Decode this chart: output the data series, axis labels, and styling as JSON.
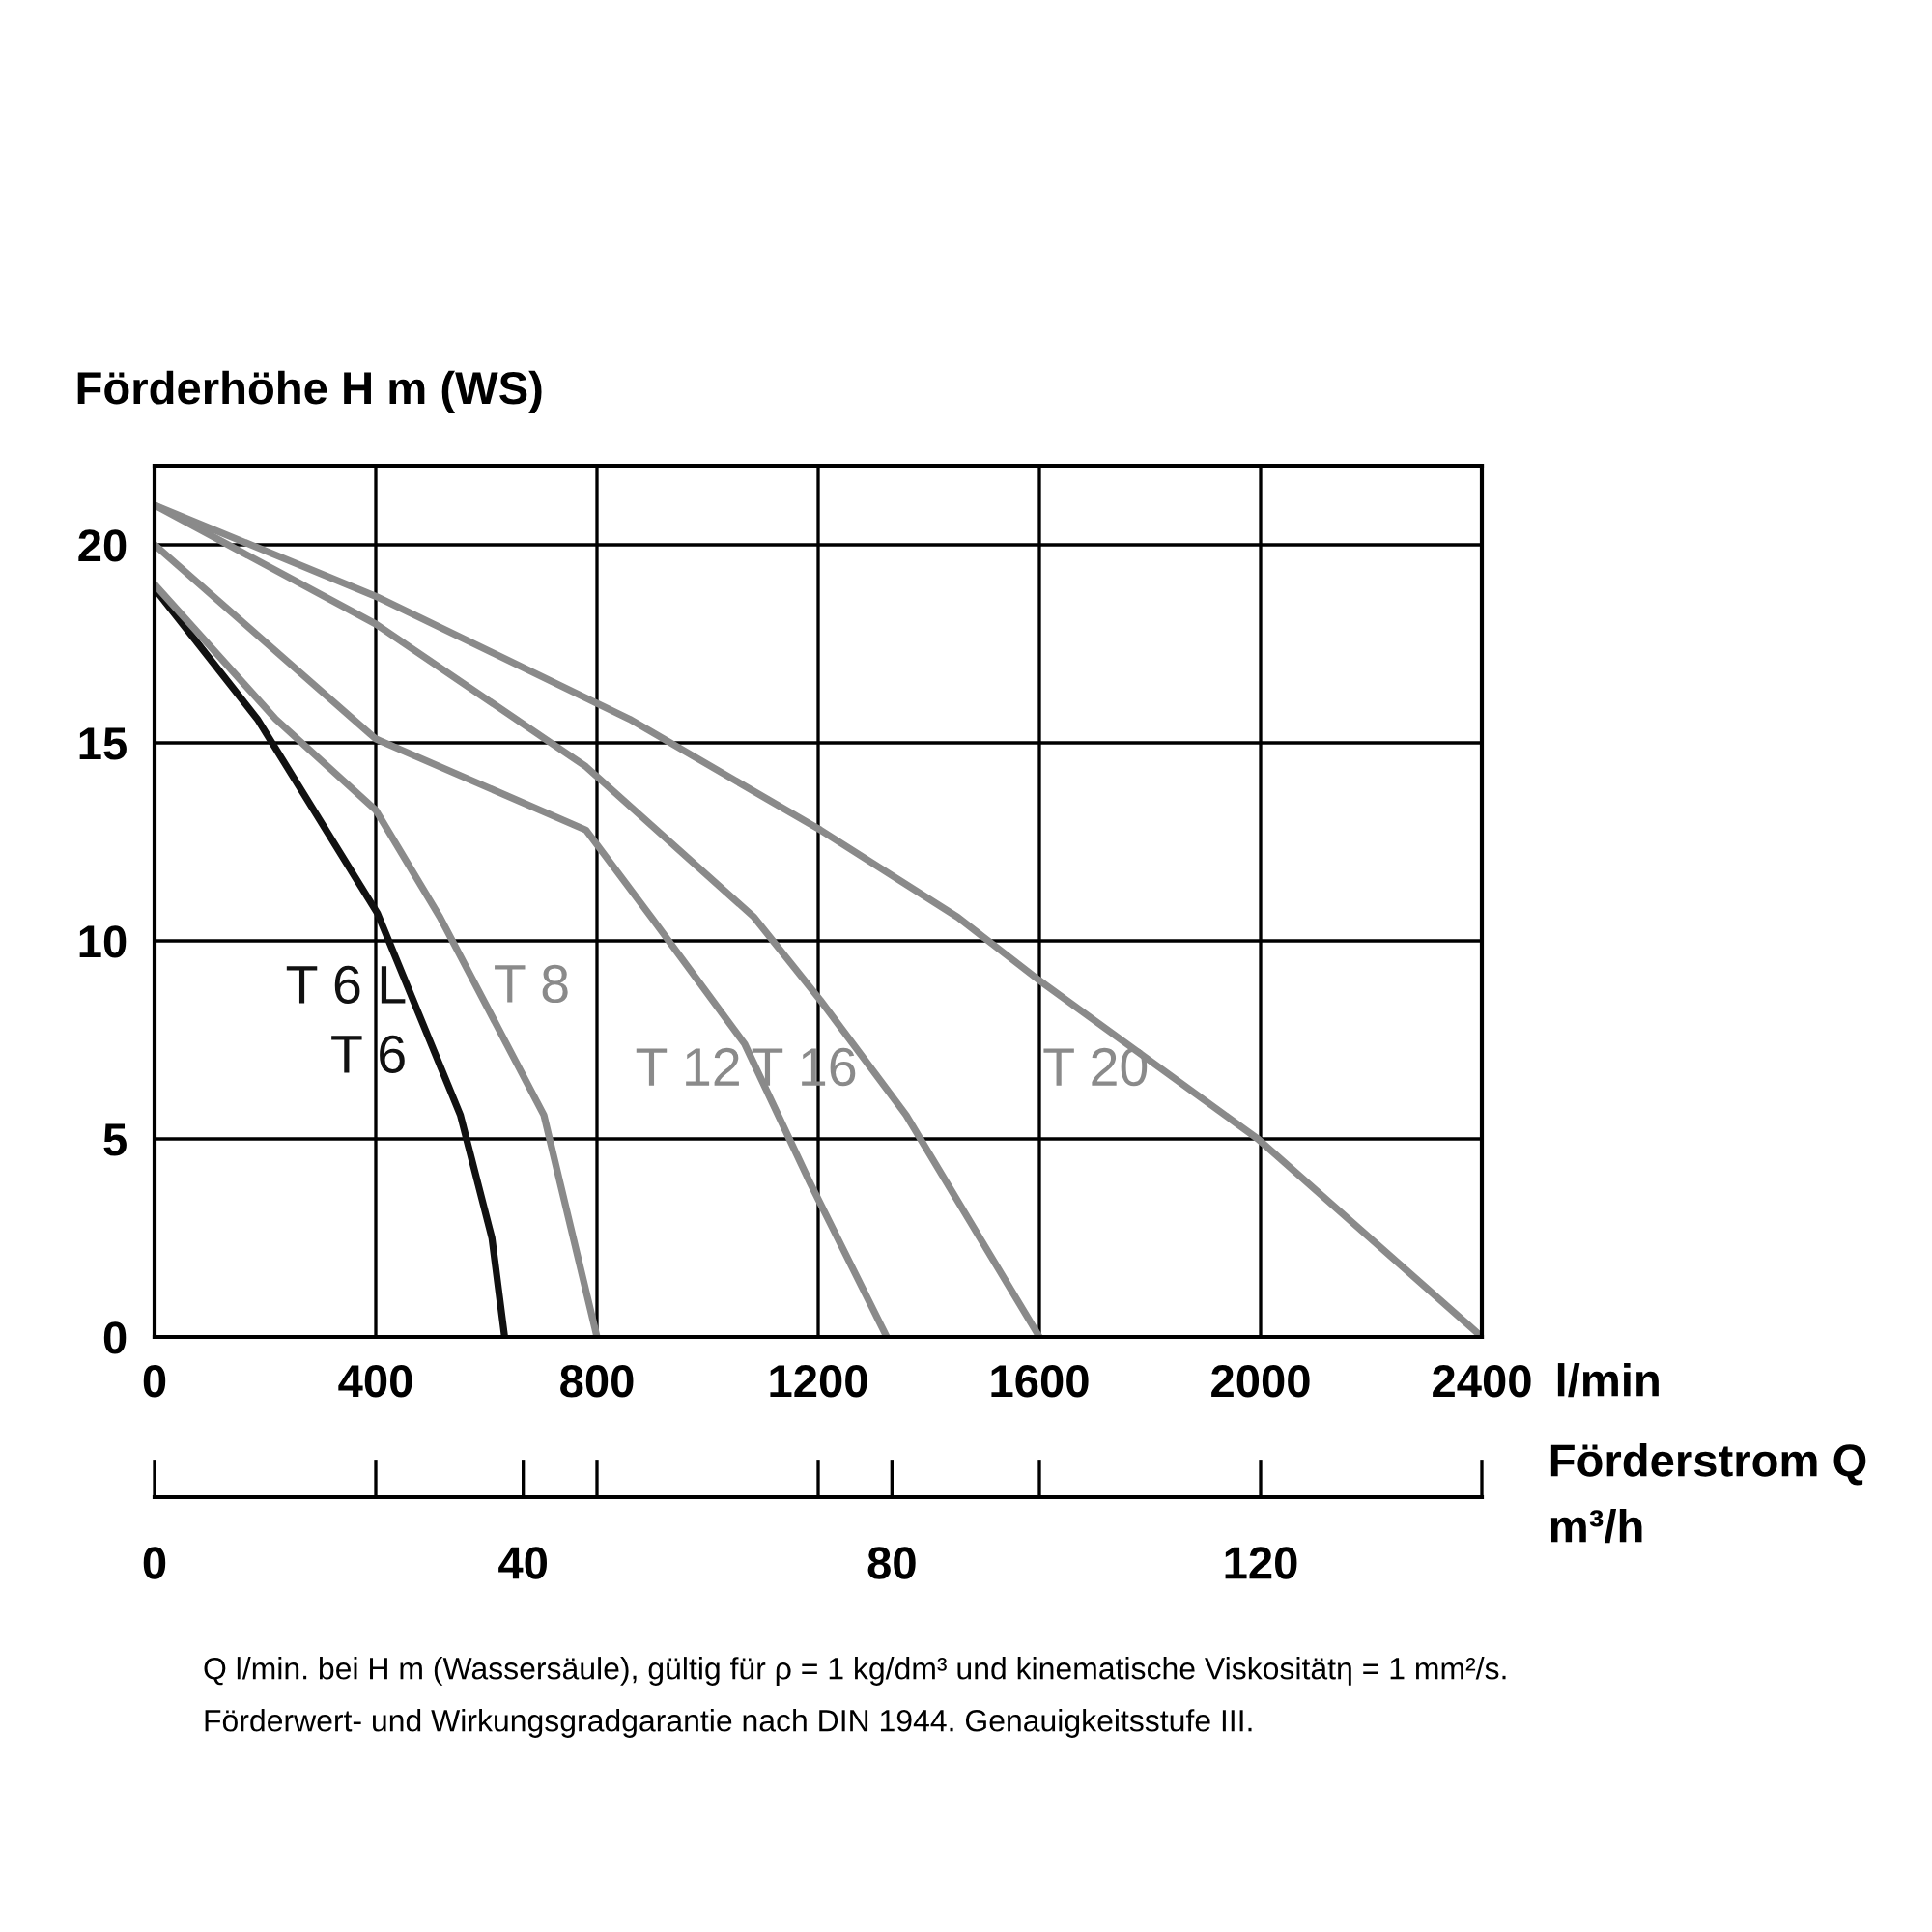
{
  "chart_data": {
    "type": "line",
    "ylabel": "Förderhöhe H m (WS)",
    "xlabel": "l/min",
    "x2label": "Förderstrom Q\nm³/h",
    "xlim": [
      0,
      2400
    ],
    "xticks": [
      0,
      400,
      800,
      1200,
      1600,
      2000,
      2400
    ],
    "x2lim": [
      0,
      144
    ],
    "x2ticks": [
      0,
      {
        "value": 24,
        "label": null
      },
      40,
      {
        "value": 48,
        "label": null
      },
      {
        "value": 72,
        "label": null
      },
      80,
      {
        "value": 96,
        "label": null
      },
      120,
      {
        "value": 144,
        "label": null
      }
    ],
    "ylim": [
      0,
      22
    ],
    "yticks": [
      0,
      5,
      10,
      15,
      20
    ],
    "grid": true,
    "marker": "none",
    "line_style": "solid",
    "series": [
      {
        "name": "T 6 L\nT 6",
        "color": "#111111",
        "x": [
          0,
          186,
          403,
          553,
          610,
          633
        ],
        "values": [
          18.9,
          15.6,
          10.7,
          5.6,
          2.5,
          0
        ]
      },
      {
        "name": "T 8",
        "color": "#8a8a8a",
        "x": [
          0,
          219,
          400,
          516,
          704,
          800
        ],
        "values": [
          19.0,
          15.6,
          13.3,
          10.6,
          5.6,
          0
        ]
      },
      {
        "name": "T 12",
        "color": "#8a8a8a",
        "x": [
          0,
          400,
          780,
          898,
          1067,
          1185,
          1324
        ],
        "values": [
          20.0,
          15.1,
          12.8,
          10.6,
          7.4,
          3.9,
          0
        ]
      },
      {
        "name": "T 16",
        "color": "#8a8a8a",
        "x": [
          0,
          400,
          780,
          1084,
          1204,
          1359,
          1600
        ],
        "values": [
          21.0,
          18.0,
          14.4,
          10.6,
          8.5,
          5.6,
          0
        ]
      },
      {
        "name": "T 20",
        "color": "#8a8a8a",
        "x": [
          0,
          400,
          859,
          1204,
          1452,
          1600,
          1995,
          2400
        ],
        "values": [
          21.0,
          18.7,
          15.6,
          12.8,
          10.6,
          9.0,
          5.0,
          0
        ]
      }
    ],
    "annotations": [
      "Q l/min. bei H m (Wassersäule), gültig für ρ = 1 kg/dm³ und kinematische Viskositätη = 1 mm²/s.",
      "Förderwert- und Wirkungsgradgarantie nach DIN 1944. Genauigkeitsstufe III."
    ]
  }
}
